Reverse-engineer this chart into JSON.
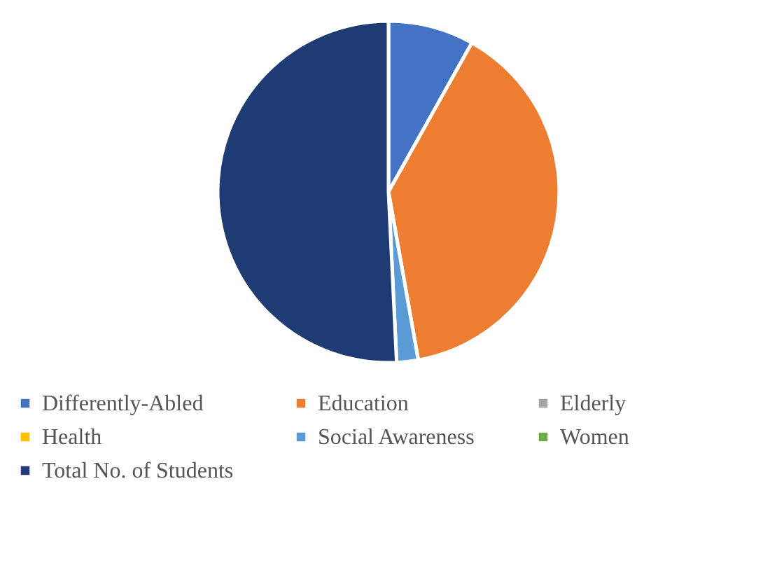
{
  "chart_data": {
    "type": "pie",
    "categories": [
      "Differently-Abled",
      "Education",
      "Elderly",
      "Health",
      "Social Awareness",
      "Women",
      "Total No. of Students"
    ],
    "values": [
      8,
      38.5,
      null,
      null,
      2,
      null,
      50
    ],
    "colors": [
      "#4472c4",
      "#ed7d31",
      "#a5a5a5",
      "#ffc000",
      "#5b9bd5",
      "#70ad47",
      "#1f3b73"
    ],
    "legend": "bottom"
  }
}
